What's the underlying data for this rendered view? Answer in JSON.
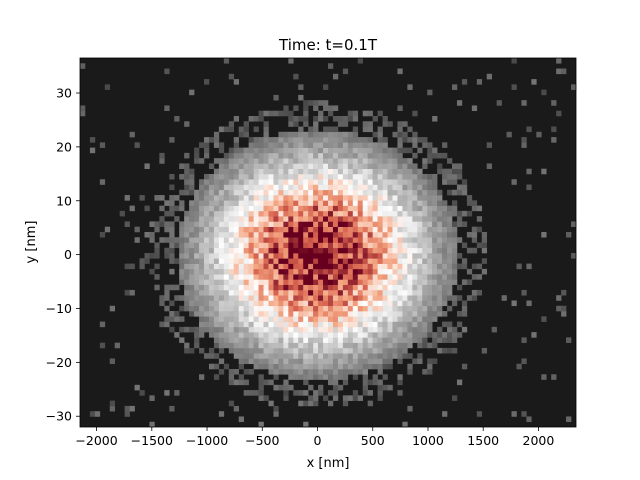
{
  "chart_data": {
    "type": "heatmap",
    "title": "Time: t=0.1T",
    "xlabel": "x [nm]",
    "ylabel": "y [nm]",
    "xlim": [
      -2150,
      2340
    ],
    "ylim": [
      -32,
      36.5
    ],
    "xticks": [
      -2000,
      -1500,
      -1000,
      -500,
      0,
      500,
      1000,
      1500,
      2000
    ],
    "xtick_labels": [
      "−2000",
      "−1500",
      "−1000",
      "−500",
      "0",
      "500",
      "1000",
      "1500",
      "2000"
    ],
    "yticks": [
      -30,
      -20,
      -10,
      0,
      10,
      20,
      30
    ],
    "ytick_labels": [
      "−30",
      "−20",
      "−10",
      "0",
      "10",
      "20",
      "30"
    ],
    "distribution": {
      "kind": "2d-gaussian-histogram",
      "center_x": 0,
      "center_y": 0,
      "sigma_x": 520,
      "sigma_y": 9.5,
      "x_bins": 100,
      "y_bins": 70
    },
    "colormap": {
      "background": "#1a1a1a",
      "low": "#333333",
      "mid": "#ffffff",
      "high": "#67001f"
    },
    "grid": false,
    "legend": "none"
  }
}
